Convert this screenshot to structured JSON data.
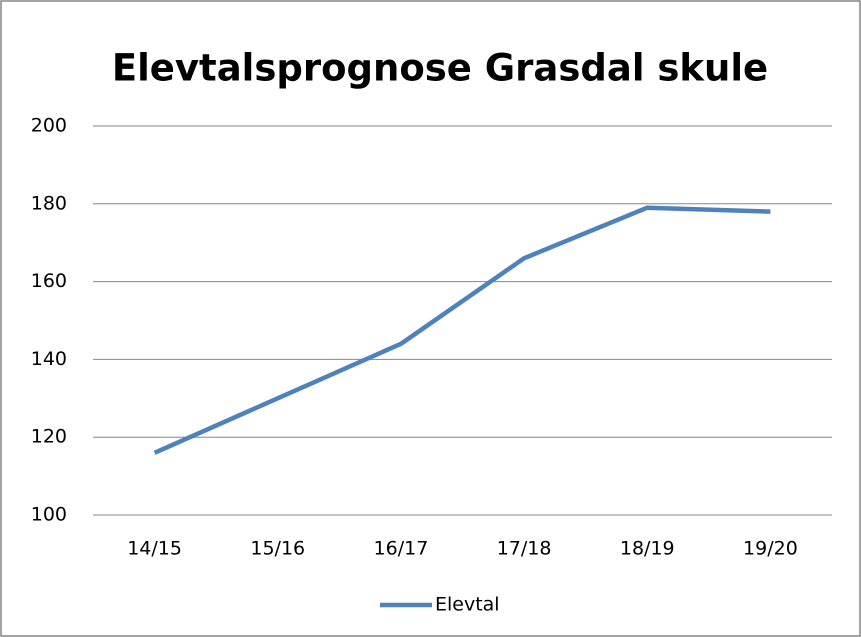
{
  "chart_data": {
    "type": "line",
    "title": "Elevtalsprognose Grasdal skule",
    "categories": [
      "14/15",
      "15/16",
      "16/17",
      "17/18",
      "18/19",
      "19/20"
    ],
    "series": [
      {
        "name": "Elevtal",
        "color": "#4f81bd",
        "values": [
          116,
          130,
          144,
          166,
          179,
          178
        ]
      }
    ],
    "ylim": [
      100,
      200
    ],
    "yticks": [
      100,
      120,
      140,
      160,
      180,
      200
    ],
    "grid": true,
    "legend": "bottom"
  }
}
